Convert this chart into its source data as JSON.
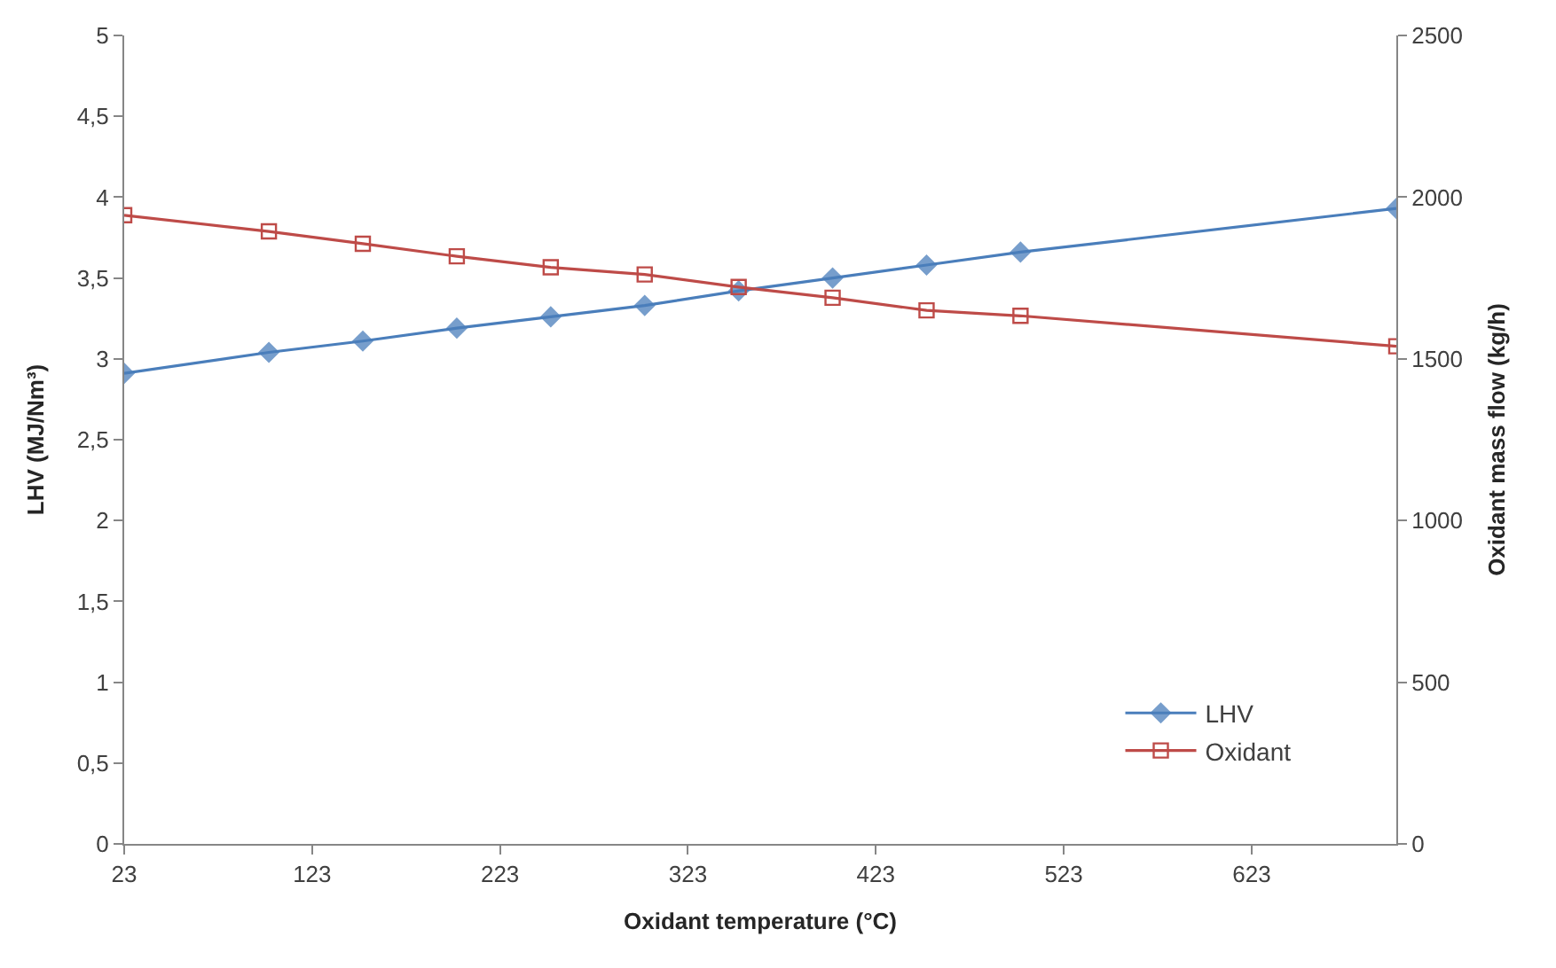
{
  "chart_data": {
    "type": "line",
    "xlabel": "Oxidant temperature (°C)",
    "ylabel": "LHV (MJ/Nm³)",
    "y2label": "Oxidant mass flow (kg/h)",
    "x": [
      23,
      100,
      150,
      200,
      250,
      300,
      350,
      400,
      450,
      500,
      700
    ],
    "series": [
      {
        "name": "LHV",
        "color": "#4a7ebb",
        "marker": "diamond",
        "values": [
          2.91,
          3.04,
          3.11,
          3.19,
          3.26,
          3.33,
          3.42,
          3.5,
          3.58,
          3.66,
          3.93
        ]
      },
      {
        "name": "Oxidant",
        "color": "#be4b48",
        "marker": "square",
        "axis": "y2",
        "values": [
          1944,
          1894,
          1856,
          1817,
          1783,
          1761,
          1722,
          1689,
          1650,
          1633,
          1539
        ]
      }
    ],
    "xlim": [
      23,
      700
    ],
    "xticks": [
      23,
      123,
      223,
      323,
      423,
      523,
      623
    ],
    "ylim": [
      0,
      5
    ],
    "yticks": [
      0,
      {
        "value": 0.5,
        "label": "0,5"
      },
      1,
      {
        "value": 1.5,
        "label": "1,5"
      },
      2,
      {
        "value": 2.5,
        "label": "2,5"
      },
      3,
      {
        "value": 3.5,
        "label": "3,5"
      },
      4,
      {
        "value": 4.5,
        "label": "4,5"
      },
      5
    ],
    "y2lim": [
      0,
      2500
    ],
    "y2ticks": [
      0,
      500,
      1000,
      1500,
      2000,
      2500
    ],
    "legend": "bottom right",
    "line_style": "solid"
  }
}
